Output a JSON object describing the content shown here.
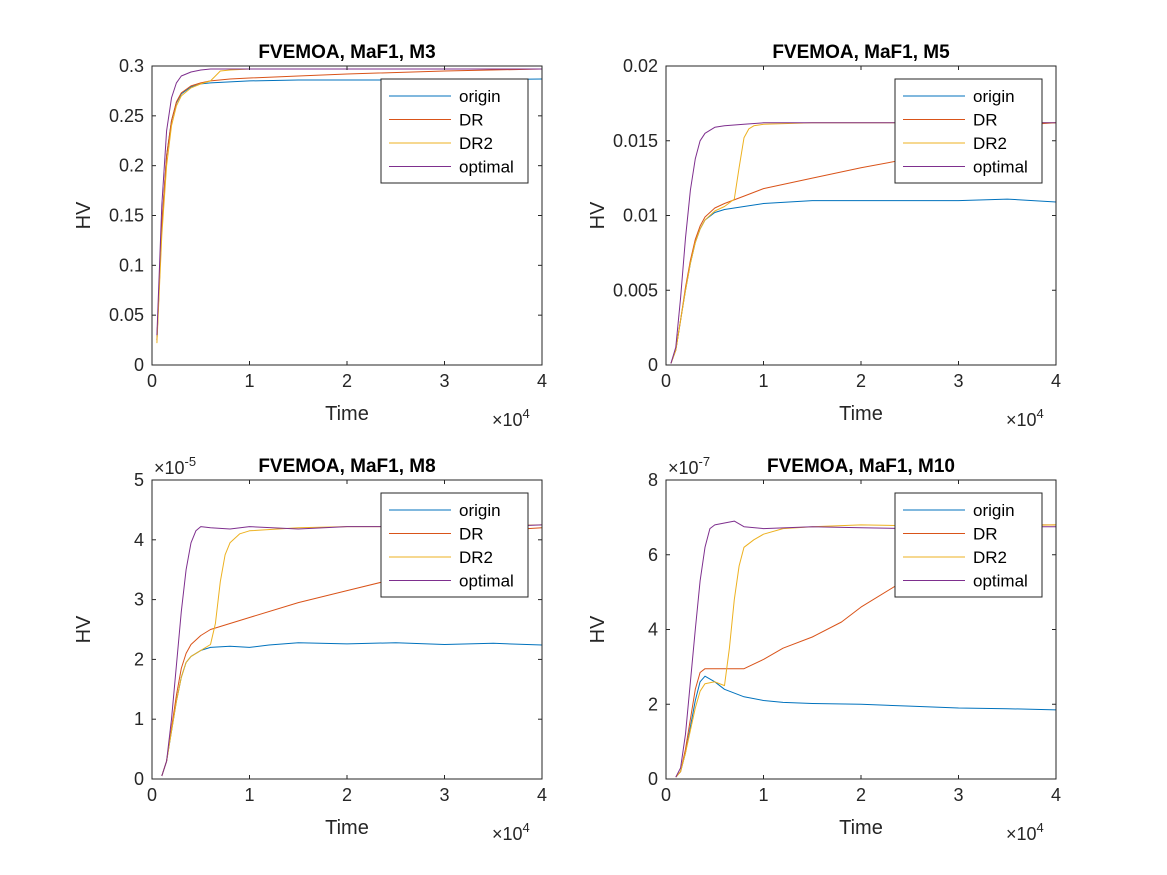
{
  "colors": {
    "origin": "#0072BD",
    "DR": "#D95319",
    "DR2": "#EDB120",
    "optimal": "#7E2F8E",
    "axis": "#262626"
  },
  "chart_data": [
    {
      "type": "line",
      "title": "FVEMOA, MaF1, M3",
      "xlabel": "Time",
      "ylabel": "HV",
      "xlim": [
        0,
        40000
      ],
      "ylim": [
        0,
        0.3
      ],
      "x_exponent_label": "×10",
      "x_exponent_power": "4",
      "y_exponent_label": "",
      "y_exponent_power": "",
      "xticks": [
        0,
        10000,
        20000,
        30000,
        40000
      ],
      "xtick_labels": [
        "0",
        "1",
        "2",
        "3",
        "4"
      ],
      "yticks": [
        0,
        0.05,
        0.1,
        0.15,
        0.2,
        0.25,
        0.3
      ],
      "ytick_labels": [
        "0",
        "0.05",
        "0.1",
        "0.15",
        "0.2",
        "0.25",
        "0.3"
      ],
      "grid": false,
      "legend_position": "top-right",
      "series": [
        {
          "name": "origin",
          "x": [
            500,
            1000,
            1500,
            2000,
            2500,
            3000,
            4000,
            5000,
            6000,
            8000,
            10000,
            15000,
            20000,
            30000,
            40000
          ],
          "y": [
            0.025,
            0.14,
            0.21,
            0.245,
            0.263,
            0.272,
            0.279,
            0.282,
            0.283,
            0.284,
            0.285,
            0.286,
            0.286,
            0.286,
            0.287
          ]
        },
        {
          "name": "DR",
          "x": [
            500,
            1000,
            1500,
            2000,
            2500,
            3000,
            4000,
            5000,
            6000,
            8000,
            10000,
            15000,
            20000,
            30000,
            40000
          ],
          "y": [
            0.025,
            0.14,
            0.21,
            0.245,
            0.264,
            0.273,
            0.28,
            0.283,
            0.285,
            0.287,
            0.288,
            0.29,
            0.292,
            0.295,
            0.297
          ]
        },
        {
          "name": "DR2",
          "x": [
            500,
            1000,
            1500,
            2000,
            2500,
            3000,
            4000,
            5000,
            6000,
            6500,
            7000,
            8000,
            10000,
            20000,
            30000,
            40000
          ],
          "y": [
            0.022,
            0.13,
            0.2,
            0.24,
            0.26,
            0.27,
            0.278,
            0.282,
            0.285,
            0.29,
            0.295,
            0.296,
            0.297,
            0.297,
            0.297,
            0.297
          ]
        },
        {
          "name": "optimal",
          "x": [
            500,
            1000,
            1500,
            2000,
            2500,
            3000,
            4000,
            5000,
            6000,
            8000,
            10000,
            20000,
            30000,
            40000
          ],
          "y": [
            0.03,
            0.16,
            0.235,
            0.268,
            0.283,
            0.29,
            0.294,
            0.296,
            0.297,
            0.297,
            0.297,
            0.297,
            0.297,
            0.297
          ]
        }
      ]
    },
    {
      "type": "line",
      "title": "FVEMOA, MaF1, M5",
      "xlabel": "Time",
      "ylabel": "HV",
      "xlim": [
        0,
        40000
      ],
      "ylim": [
        0,
        0.02
      ],
      "x_exponent_label": "×10",
      "x_exponent_power": "4",
      "y_exponent_label": "",
      "y_exponent_power": "",
      "xticks": [
        0,
        10000,
        20000,
        30000,
        40000
      ],
      "xtick_labels": [
        "0",
        "1",
        "2",
        "3",
        "4"
      ],
      "yticks": [
        0,
        0.005,
        0.01,
        0.015,
        0.02
      ],
      "ytick_labels": [
        "0",
        "0.005",
        "0.01",
        "0.015",
        "0.02"
      ],
      "grid": false,
      "legend_position": "top-right",
      "series": [
        {
          "name": "origin",
          "x": [
            500,
            1000,
            1500,
            2000,
            2500,
            3000,
            3500,
            4000,
            5000,
            6000,
            8000,
            10000,
            15000,
            20000,
            25000,
            30000,
            35000,
            40000
          ],
          "y": [
            0.0001,
            0.001,
            0.003,
            0.005,
            0.0068,
            0.0082,
            0.0091,
            0.0097,
            0.0102,
            0.0104,
            0.0106,
            0.0108,
            0.011,
            0.011,
            0.011,
            0.011,
            0.0111,
            0.0109
          ]
        },
        {
          "name": "DR",
          "x": [
            500,
            1000,
            1500,
            2000,
            2500,
            3000,
            3500,
            4000,
            5000,
            6000,
            8000,
            10000,
            15000,
            20000,
            25000,
            30000,
            35000,
            40000
          ],
          "y": [
            0.0001,
            0.001,
            0.003,
            0.0052,
            0.007,
            0.0084,
            0.0093,
            0.0099,
            0.0105,
            0.0108,
            0.0113,
            0.0118,
            0.0125,
            0.0132,
            0.0138,
            0.0145,
            0.016,
            0.0162
          ]
        },
        {
          "name": "DR2",
          "x": [
            500,
            1000,
            1500,
            2000,
            2500,
            3000,
            3500,
            4000,
            5000,
            6000,
            7000,
            7500,
            8000,
            8500,
            9000,
            10000,
            15000,
            20000,
            30000,
            40000
          ],
          "y": [
            0.0001,
            0.001,
            0.003,
            0.005,
            0.0068,
            0.0082,
            0.0091,
            0.0097,
            0.0103,
            0.0106,
            0.0111,
            0.0132,
            0.0152,
            0.0158,
            0.016,
            0.0161,
            0.0162,
            0.0162,
            0.0162,
            0.0162
          ]
        },
        {
          "name": "optimal",
          "x": [
            500,
            1000,
            1500,
            2000,
            2500,
            3000,
            3500,
            4000,
            5000,
            6000,
            8000,
            10000,
            20000,
            30000,
            40000
          ],
          "y": [
            0.0001,
            0.0012,
            0.0045,
            0.0085,
            0.0117,
            0.0138,
            0.015,
            0.0155,
            0.0159,
            0.016,
            0.0161,
            0.0162,
            0.0162,
            0.0162,
            0.0162
          ]
        }
      ]
    },
    {
      "type": "line",
      "title": "FVEMOA, MaF1, M8",
      "xlabel": "Time",
      "ylabel": "HV",
      "xlim": [
        0,
        40000
      ],
      "ylim": [
        0,
        5
      ],
      "x_exponent_label": "×10",
      "x_exponent_power": "4",
      "y_exponent_label": "×10",
      "y_exponent_power": "-5",
      "xticks": [
        0,
        10000,
        20000,
        30000,
        40000
      ],
      "xtick_labels": [
        "0",
        "1",
        "2",
        "3",
        "4"
      ],
      "yticks": [
        0,
        1,
        2,
        3,
        4,
        5
      ],
      "ytick_labels": [
        "0",
        "1",
        "2",
        "3",
        "4",
        "5"
      ],
      "grid": false,
      "legend_position": "top-right",
      "series": [
        {
          "name": "origin",
          "x": [
            1000,
            1500,
            2000,
            2500,
            3000,
            3500,
            4000,
            5000,
            6000,
            8000,
            10000,
            12000,
            15000,
            20000,
            25000,
            30000,
            35000,
            40000
          ],
          "y": [
            0.05,
            0.3,
            0.8,
            1.3,
            1.7,
            1.95,
            2.05,
            2.15,
            2.2,
            2.22,
            2.2,
            2.24,
            2.28,
            2.26,
            2.28,
            2.25,
            2.27,
            2.24
          ]
        },
        {
          "name": "DR",
          "x": [
            1000,
            1500,
            2000,
            2500,
            3000,
            3500,
            4000,
            5000,
            6000,
            8000,
            10000,
            15000,
            20000,
            25000,
            30000,
            35000,
            40000
          ],
          "y": [
            0.05,
            0.3,
            0.85,
            1.4,
            1.85,
            2.1,
            2.25,
            2.4,
            2.5,
            2.6,
            2.7,
            2.95,
            3.15,
            3.35,
            3.75,
            4.15,
            4.2
          ]
        },
        {
          "name": "DR2",
          "x": [
            1000,
            1500,
            2000,
            2500,
            3000,
            3500,
            4000,
            5000,
            6000,
            6500,
            7000,
            7500,
            8000,
            9000,
            10000,
            15000,
            20000,
            30000,
            40000
          ],
          "y": [
            0.05,
            0.3,
            0.8,
            1.3,
            1.7,
            1.95,
            2.05,
            2.15,
            2.25,
            2.6,
            3.3,
            3.75,
            3.95,
            4.1,
            4.15,
            4.2,
            4.22,
            4.22,
            4.25
          ]
        },
        {
          "name": "optimal",
          "x": [
            1000,
            1500,
            2000,
            2500,
            3000,
            3500,
            4000,
            4500,
            5000,
            6000,
            8000,
            10000,
            15000,
            20000,
            25000,
            30000,
            35000,
            40000
          ],
          "y": [
            0.05,
            0.3,
            1.0,
            1.9,
            2.8,
            3.5,
            3.95,
            4.15,
            4.22,
            4.2,
            4.18,
            4.22,
            4.18,
            4.22,
            4.22,
            4.2,
            4.22,
            4.25
          ]
        }
      ]
    },
    {
      "type": "line",
      "title": "FVEMOA, MaF1, M10",
      "xlabel": "Time",
      "ylabel": "HV",
      "xlim": [
        0,
        40000
      ],
      "ylim": [
        0,
        8
      ],
      "x_exponent_label": "×10",
      "x_exponent_power": "4",
      "y_exponent_label": "×10",
      "y_exponent_power": "-7",
      "xticks": [
        0,
        10000,
        20000,
        30000,
        40000
      ],
      "xtick_labels": [
        "0",
        "1",
        "2",
        "3",
        "4"
      ],
      "yticks": [
        0,
        2,
        4,
        6,
        8
      ],
      "ytick_labels": [
        "0",
        "2",
        "4",
        "6",
        "8"
      ],
      "grid": false,
      "legend_position": "top-right",
      "series": [
        {
          "name": "origin",
          "x": [
            1000,
            1500,
            2000,
            2500,
            3000,
            3500,
            4000,
            5000,
            6000,
            8000,
            10000,
            12000,
            15000,
            20000,
            25000,
            30000,
            35000,
            40000
          ],
          "y": [
            0.05,
            0.2,
            0.7,
            1.4,
            2.1,
            2.6,
            2.75,
            2.6,
            2.4,
            2.2,
            2.1,
            2.05,
            2.02,
            2.0,
            1.95,
            1.9,
            1.88,
            1.85
          ]
        },
        {
          "name": "DR",
          "x": [
            1000,
            1500,
            2000,
            2500,
            3000,
            3500,
            4000,
            5000,
            6000,
            8000,
            10000,
            12000,
            15000,
            18000,
            20000,
            25000,
            30000,
            35000,
            40000
          ],
          "y": [
            0.05,
            0.2,
            0.8,
            1.6,
            2.4,
            2.85,
            2.95,
            2.95,
            2.95,
            2.95,
            3.2,
            3.5,
            3.8,
            4.2,
            4.6,
            5.4,
            6.2,
            6.8,
            6.8
          ]
        },
        {
          "name": "DR2",
          "x": [
            1000,
            1500,
            2000,
            2500,
            3000,
            3500,
            4000,
            5000,
            6000,
            6500,
            7000,
            7500,
            8000,
            9000,
            10000,
            12000,
            15000,
            20000,
            30000,
            40000
          ],
          "y": [
            0.05,
            0.2,
            0.7,
            1.3,
            1.9,
            2.35,
            2.55,
            2.6,
            2.5,
            3.5,
            4.8,
            5.7,
            6.2,
            6.4,
            6.55,
            6.7,
            6.75,
            6.8,
            6.75,
            6.8
          ]
        },
        {
          "name": "optimal",
          "x": [
            1000,
            1500,
            2000,
            2500,
            3000,
            3500,
            4000,
            4500,
            5000,
            6000,
            7000,
            8000,
            10000,
            15000,
            20000,
            25000,
            30000,
            35000,
            40000
          ],
          "y": [
            0.05,
            0.3,
            1.2,
            2.6,
            4.0,
            5.3,
            6.2,
            6.7,
            6.8,
            6.85,
            6.9,
            6.75,
            6.7,
            6.75,
            6.72,
            6.7,
            6.72,
            6.75,
            6.75
          ]
        }
      ]
    }
  ]
}
